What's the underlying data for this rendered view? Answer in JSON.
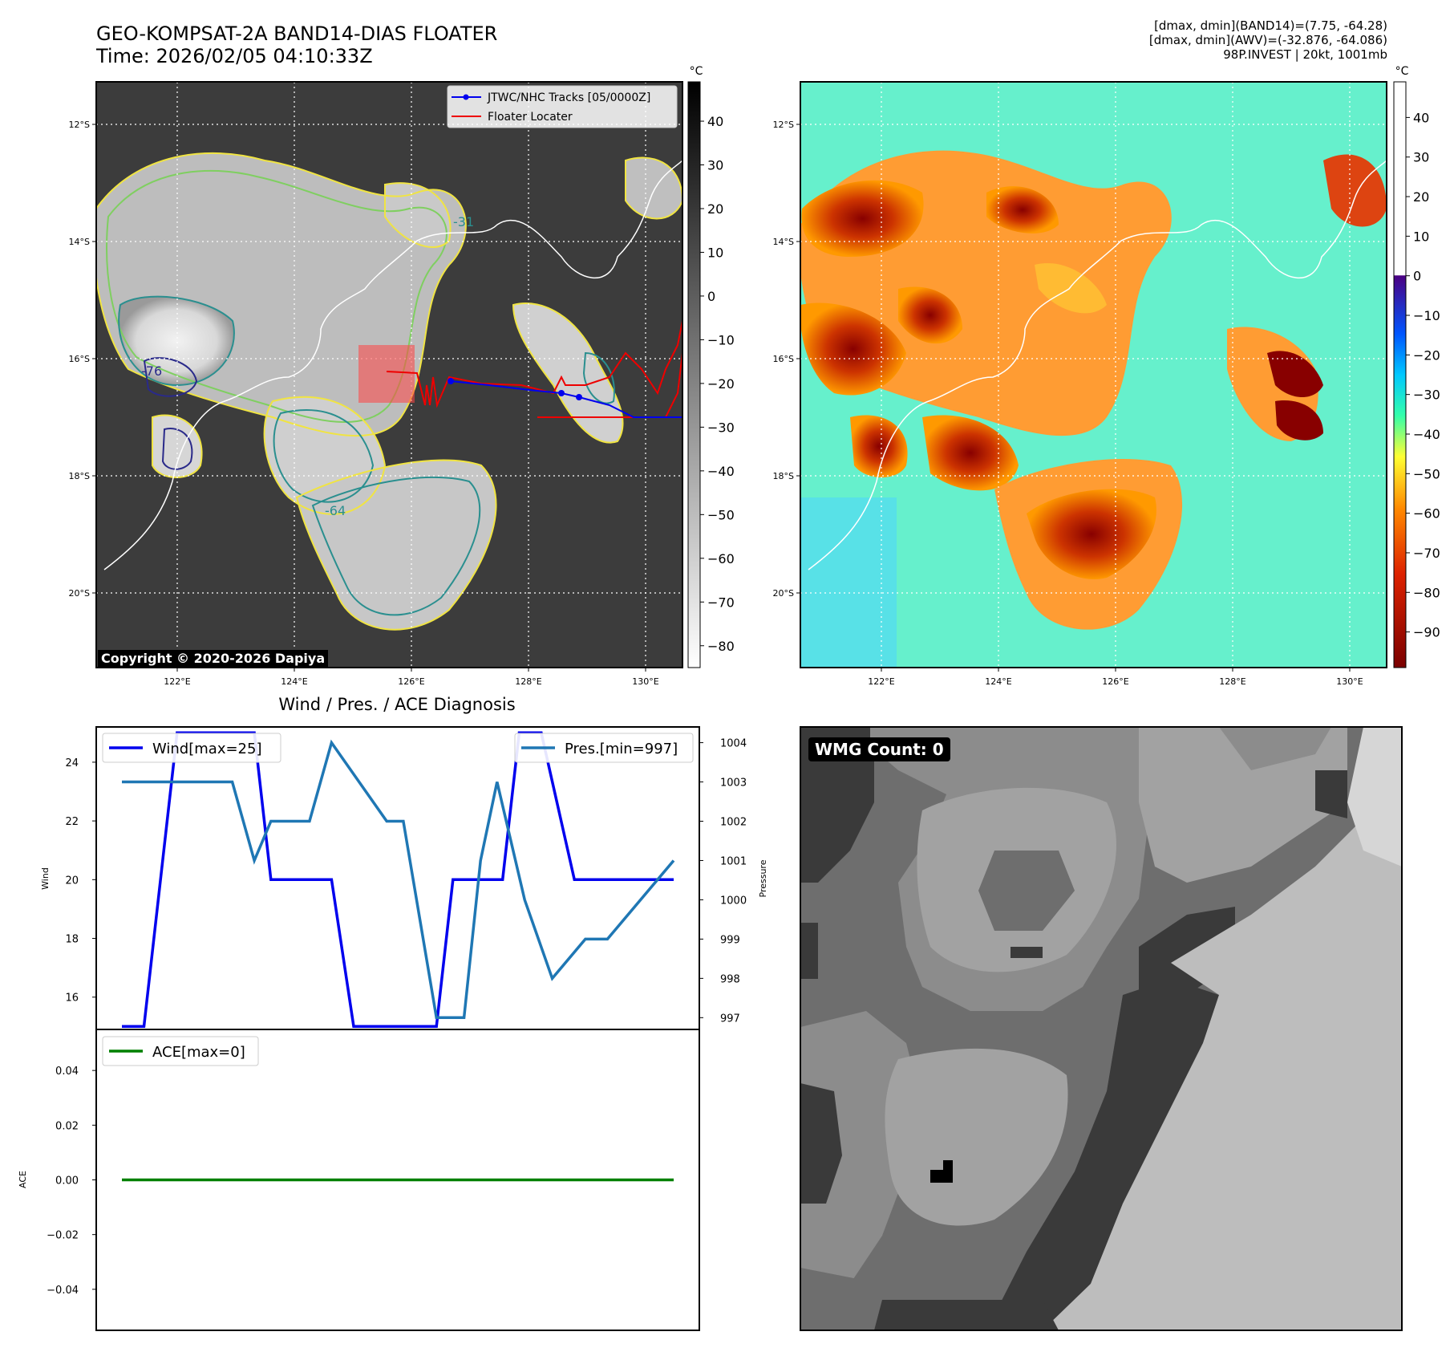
{
  "header": {
    "title_line1": "GEO-KOMPSAT-2A BAND14-DIAS FLOATER",
    "title_line2": "Time: 2026/02/05 04:10:33Z",
    "info_line1": "[dmax, dmin](BAND14)=(7.75, -64.28)",
    "info_line2": "[dmax, dmin](AWV)=(-32.876, -64.086)",
    "info_line3": "98P.INVEST | 20kt, 1001mb"
  },
  "copyright": "Copyright © 2020-2026 Dapiya",
  "wmg_count_label": "WMG Count: 0",
  "chart_data": [
    {
      "type": "heatmap",
      "name": "ir_map",
      "lat_ticks": [
        "12°S",
        "14°S",
        "16°S",
        "18°S",
        "20°S"
      ],
      "lon_ticks": [
        "122°E",
        "124°E",
        "126°E",
        "128°E",
        "130°E"
      ],
      "colorbar_unit": "°C",
      "colorbar_ticks": [
        40,
        30,
        20,
        10,
        0,
        -10,
        -20,
        -30,
        -40,
        -50,
        -60,
        -70,
        -80
      ],
      "contour_labels": [
        "-31",
        "-64",
        "-76"
      ],
      "legend": [
        "JTWC/NHC Tracks [05/0000Z]",
        "Floater Locater"
      ],
      "track_color": "#0000ff",
      "locator_color": "#ff0000"
    },
    {
      "type": "heatmap",
      "name": "enhanced_map",
      "lat_ticks": [
        "12°S",
        "14°S",
        "16°S",
        "18°S",
        "20°S"
      ],
      "lon_ticks": [
        "122°E",
        "124°E",
        "126°E",
        "128°E",
        "130°E"
      ],
      "colorbar_unit": "°C",
      "colorbar_ticks": [
        40,
        30,
        20,
        10,
        0,
        -10,
        -20,
        -30,
        -40,
        -50,
        -60,
        -70,
        -80,
        -90
      ]
    },
    {
      "type": "line",
      "title": "Wind / Pres. / ACE Diagnosis",
      "ylabel": "Wind",
      "ylabel_right": "Pressure",
      "wind_ticks": [
        16,
        18,
        20,
        22,
        24
      ],
      "pressure_ticks": [
        997,
        998,
        999,
        1000,
        1001,
        1002,
        1003,
        1004
      ],
      "ylim": [
        14.9,
        25.2
      ],
      "ylim_right": [
        996.7,
        1004.4
      ],
      "series": [
        {
          "name": "Wind[max=25]",
          "color": "#0000ee",
          "x": [
            0,
            0.04,
            0.1,
            0.24,
            0.27,
            0.38,
            0.42,
            0.57,
            0.6,
            0.69,
            0.72,
            0.76,
            0.82,
            0.86,
            1.0
          ],
          "values": [
            15,
            15,
            25,
            25,
            20,
            20,
            15,
            15,
            20,
            20,
            25,
            25,
            20,
            20,
            20
          ]
        },
        {
          "name": "Pres.[min=997]",
          "color": "#1f77b4",
          "x": [
            0,
            0.17,
            0.2,
            0.24,
            0.27,
            0.34,
            0.38,
            0.48,
            0.51,
            0.57,
            0.62,
            0.65,
            0.68,
            0.73,
            0.78,
            0.84,
            0.88,
            1.0
          ],
          "values": [
            1003,
            1003,
            1003,
            1001,
            1002,
            1002,
            1004,
            1002,
            1002,
            997,
            997,
            1001,
            1003,
            1000,
            998,
            999,
            999,
            1001
          ]
        }
      ]
    },
    {
      "type": "line",
      "ylabel": "ACE",
      "yticks": [
        "0.04",
        "0.02",
        "0.00",
        "−0.02",
        "−0.04"
      ],
      "ylim": [
        -0.055,
        0.055
      ],
      "series": [
        {
          "name": "ACE[max=0]",
          "color": "#008000",
          "x": [
            0,
            1
          ],
          "values": [
            0,
            0
          ]
        }
      ]
    }
  ]
}
